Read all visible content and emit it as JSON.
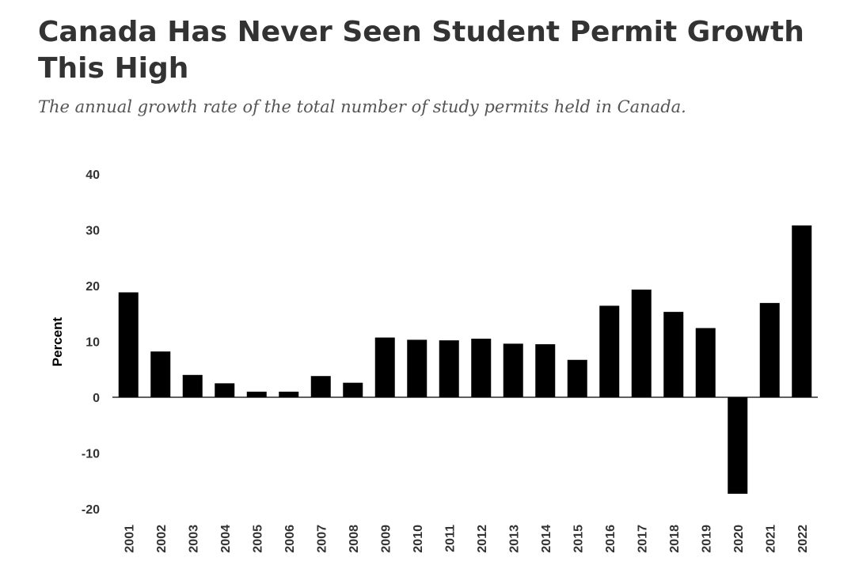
{
  "header": {
    "title": "Canada Has Never Seen Student Permit Growth This High",
    "subtitle": "The annual growth rate of the total number of study permits held in Canada."
  },
  "colors": {
    "bar": "#000000",
    "axis": "#000000",
    "text": "#333333"
  },
  "chart_data": {
    "type": "bar",
    "title": "Canada Has Never Seen Student Permit Growth This High",
    "subtitle": "The annual growth rate of the total number of study permits held in Canada.",
    "xlabel": "",
    "ylabel": "Percent",
    "ylim": [
      -20,
      40
    ],
    "yticks": [
      40,
      30,
      20,
      10,
      0,
      -10,
      -20
    ],
    "grid": false,
    "categories": [
      "2001",
      "2002",
      "2003",
      "2004",
      "2005",
      "2006",
      "2007",
      "2008",
      "2009",
      "2010",
      "2011",
      "2012",
      "2013",
      "2014",
      "2015",
      "2016",
      "2017",
      "2018",
      "2019",
      "2020",
      "2021",
      "2022"
    ],
    "values": [
      18.8,
      8.2,
      4.0,
      2.5,
      1.0,
      1.0,
      3.8,
      2.6,
      10.7,
      10.3,
      10.2,
      10.5,
      9.6,
      9.5,
      6.7,
      16.4,
      19.3,
      15.3,
      12.4,
      -17.3,
      16.9,
      30.8
    ]
  }
}
